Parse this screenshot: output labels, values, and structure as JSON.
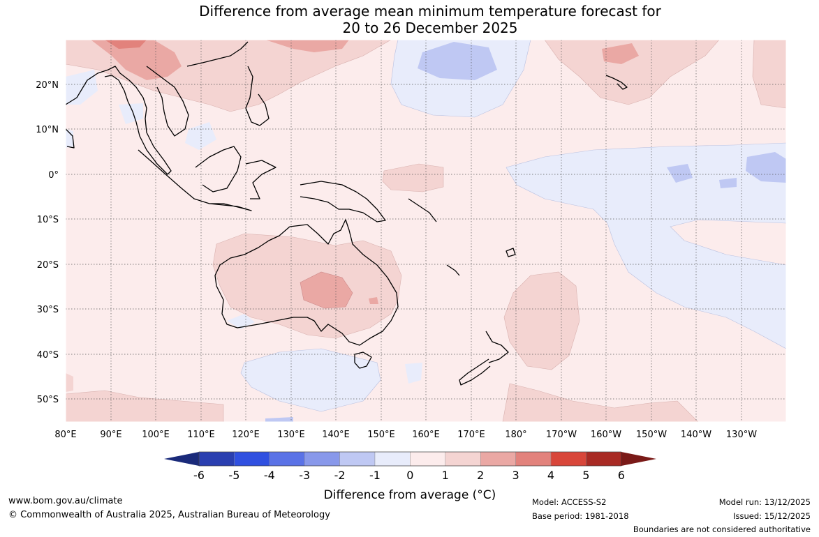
{
  "title": {
    "line1": "Difference from average mean minimum temperature forecast for",
    "line2": "20 to 26 December 2025"
  },
  "map": {
    "lat_labels": [
      "20°N",
      "10°N",
      "0°",
      "10°S",
      "20°S",
      "30°S",
      "40°S",
      "50°S"
    ],
    "lon_labels": [
      "80°E",
      "90°E",
      "100°E",
      "110°E",
      "120°E",
      "130°E",
      "140°E",
      "150°E",
      "160°E",
      "170°E",
      "180°",
      "170°W",
      "160°W",
      "150°W",
      "140°W",
      "130°W"
    ]
  },
  "colorbar": {
    "ticks": [
      "-6",
      "-5",
      "-4",
      "-3",
      "-2",
      "-1",
      "0",
      "1",
      "2",
      "3",
      "4",
      "5",
      "6"
    ],
    "colors": [
      "#1a2a7a",
      "#2a3fb0",
      "#3050e0",
      "#5a72e6",
      "#8898ea",
      "#bfc8f3",
      "#e8ecfb",
      "#fcecec",
      "#f4d4d2",
      "#eaa8a4",
      "#e2827c",
      "#d8463a",
      "#a82a24",
      "#7a1a18"
    ],
    "title": "Difference from average (°C)",
    "title_text": "Difference from average (",
    "title_unit": "°C)"
  },
  "footer": {
    "website": "www.bom.gov.au/climate",
    "copyright": "© Commonwealth of Australia 2025, Australian Bureau of Meteorology",
    "model": "Model: ACCESS-S2",
    "base_period": "Base period: 1981-2018",
    "model_run": "Model run: 13/12/2025",
    "issued": "Issued: 15/12/2025",
    "disclaimer": "Boundaries are not considered authoritative"
  }
}
